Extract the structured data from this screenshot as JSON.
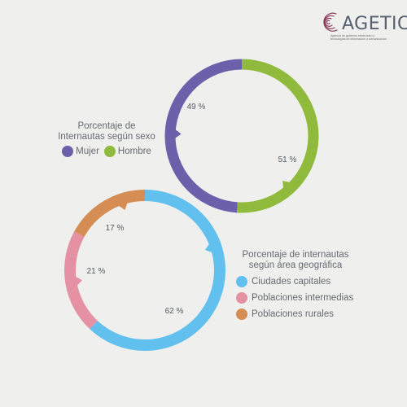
{
  "logo": {
    "name": "AGETIC",
    "subtitle_line1": "Agencia de gobierno electrónico y",
    "subtitle_line2": "tecnologías de información y comunicación"
  },
  "chart_data": [
    {
      "type": "pie",
      "title_line1": "Porcentaje de",
      "title_line2": "Internautas según sexo",
      "series": [
        {
          "name": "Mujer",
          "value": 49,
          "label": "49 %",
          "color": "#6b60a9"
        },
        {
          "name": "Hombre",
          "value": 51,
          "label": "51 %",
          "color": "#8fba3c"
        }
      ],
      "legend_placement": "left"
    },
    {
      "type": "pie",
      "title_line1": "Porcentaje de internautas",
      "title_line2": "según área geográfica",
      "series": [
        {
          "name": "Ciudades capitales",
          "value": 62,
          "label": "62 %",
          "color": "#61c0ee"
        },
        {
          "name": "Poblaciones intermedias",
          "value": 21,
          "label": "21 %",
          "color": "#e591a4"
        },
        {
          "name": "Poblaciones rurales",
          "value": 17,
          "label": "17 %",
          "color": "#d68d53"
        }
      ],
      "legend_placement": "right"
    }
  ]
}
